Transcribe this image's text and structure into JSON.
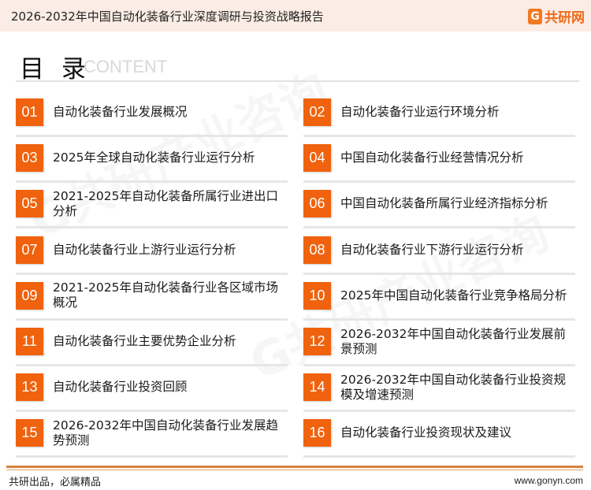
{
  "header": {
    "title": "2026-2032年中国自动化装备行业深度调研与投资战略报告",
    "logo_text": "共研网",
    "logo_mark": "G"
  },
  "heading": {
    "cn": "目 录",
    "en": "CONTENT"
  },
  "colors": {
    "accent": "#f0620d",
    "header_bg": "#fbede5",
    "footer_line": "#d9823d"
  },
  "items": [
    {
      "num": "01",
      "text": "自动化装备行业发展概况"
    },
    {
      "num": "02",
      "text": "自动化装备行业运行环境分析"
    },
    {
      "num": "03",
      "text": "2025年全球自动化装备行业运行分析"
    },
    {
      "num": "04",
      "text": "中国自动化装备行业经营情况分析"
    },
    {
      "num": "05",
      "text": "2021-2025年自动化装备所属行业进出口分析"
    },
    {
      "num": "06",
      "text": "中国自动化装备所属行业经济指标分析"
    },
    {
      "num": "07",
      "text": "自动化装备行业上游行业运行分析"
    },
    {
      "num": "08",
      "text": "自动化装备行业下游行业运行分析"
    },
    {
      "num": "09",
      "text": "2021-2025年自动化装备行业各区域市场概况"
    },
    {
      "num": "10",
      "text": "2025年中国自动化装备行业竞争格局分析"
    },
    {
      "num": "11",
      "text": "自动化装备行业主要优势企业分析"
    },
    {
      "num": "12",
      "text": "2026-2032年中国自动化装备行业发展前景预测"
    },
    {
      "num": "13",
      "text": "自动化装备行业投资回顾"
    },
    {
      "num": "14",
      "text": "2026-2032年中国自动化装备行业投资规模及增速预测"
    },
    {
      "num": "15",
      "text": "2026-2032年中国自动化装备行业发展趋势预测"
    },
    {
      "num": "16",
      "text": "自动化装备行业投资现状及建议"
    }
  ],
  "footer": {
    "slogan": "共研出品，必属精品",
    "url": "www.gonyn.com"
  }
}
